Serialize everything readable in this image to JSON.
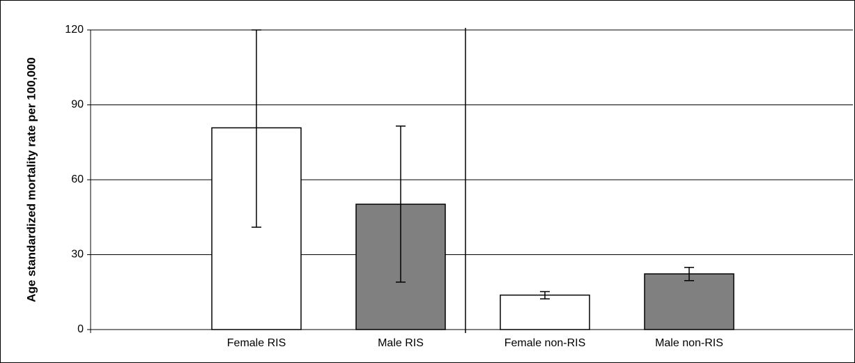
{
  "chart_data": {
    "type": "bar",
    "y_label": "Age standardized mortality rate per 100,000",
    "categories": [
      "Female RIS",
      "Male RIS",
      "Female non-RIS",
      "Male non-RIS"
    ],
    "values": [
      80.8,
      50.2,
      13.8,
      22.3
    ],
    "ci_low": [
      41,
      19,
      12.3,
      19.6
    ],
    "ci_high": [
      120,
      81.5,
      15.2,
      24.9
    ],
    "colors": [
      "#ffffff",
      "#808080",
      "#ffffff",
      "#808080"
    ],
    "ylim": [
      0,
      120
    ],
    "yticks": [
      0,
      30,
      60,
      90,
      120
    ],
    "grid": true
  }
}
